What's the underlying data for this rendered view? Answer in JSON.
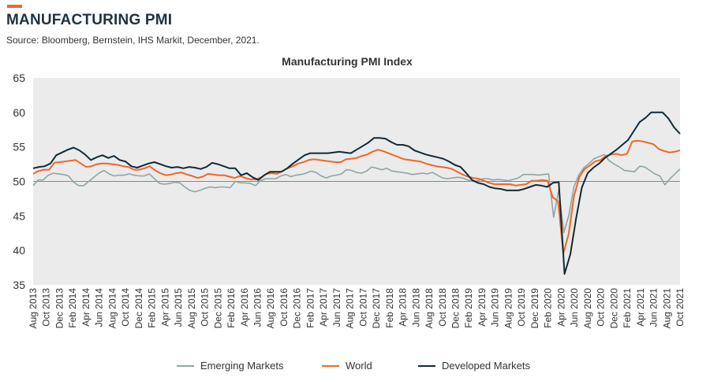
{
  "header": {
    "title": "MANUFACTURING PMI",
    "source": "Source: Bloomberg, Bernstein, IHS Markit, December, 2021."
  },
  "colors": {
    "accent": "#f26722",
    "emerging": "#8fa5a5",
    "world": "#f26722",
    "developed": "#0f2b3a",
    "plot_bg": "#ebebeb",
    "reference_line": "#888888"
  },
  "chart_data": {
    "type": "line",
    "title": "Manufacturing PMI Index",
    "xlabel": "",
    "ylabel": "",
    "ylim": [
      35,
      65
    ],
    "yticks": [
      35,
      40,
      45,
      50,
      55,
      60,
      65
    ],
    "reference_line": 50,
    "grid": false,
    "legend_position": "bottom",
    "x_start": "Aug 2013",
    "x_labels": [
      "Aug 2013",
      "Oct 2013",
      "Dec 2013",
      "Feb 2014",
      "Apr 2014",
      "Jun 2014",
      "Aug 2014",
      "Oct 2014",
      "Dec 2014",
      "Feb 2015",
      "Apr 2015",
      "Jun 2015",
      "Aug 2015",
      "Oct 2015",
      "Dec 2015",
      "Feb 2016",
      "Apr 2016",
      "Jun 2016",
      "Aug 2016",
      "Oct 2016",
      "Dec 2016",
      "Feb 2017",
      "Apr 2017",
      "Jun 2017",
      "Aug 2017",
      "Oct 2017",
      "Dec 2017",
      "Feb 2018",
      "Apr 2018",
      "Jun 2018",
      "Aug 2018",
      "Oct 2018",
      "Dec 2018",
      "Feb 2019",
      "Apr 2019",
      "Jun 2019",
      "Aug 2019",
      "Oct 2019",
      "Dec 2019",
      "Feb 2020",
      "Apr 2020",
      "Jun 2020",
      "Aug 2020",
      "Oct 2020",
      "Dec 2020",
      "Feb 2021",
      "Apr 2021",
      "Jun 2021",
      "Aug 2021",
      "Oct 2021"
    ],
    "series": [
      {
        "name": "Emerging Markets",
        "values": [
          49.4,
          50.2,
          50.2,
          50.9,
          51.2,
          51.1,
          51.0,
          50.8,
          49.9,
          49.4,
          49.4,
          50.0,
          50.6,
          51.2,
          51.6,
          51.1,
          50.8,
          50.9,
          50.9,
          51.1,
          50.9,
          50.8,
          50.8,
          51.1,
          50.4,
          49.7,
          49.6,
          49.7,
          49.9,
          49.8,
          49.2,
          48.7,
          48.5,
          48.7,
          49.0,
          49.2,
          49.1,
          49.2,
          49.2,
          49.1,
          50.0,
          49.8,
          49.8,
          49.7,
          49.4,
          50.1,
          50.4,
          50.4,
          50.4,
          50.8,
          51.0,
          50.7,
          50.9,
          51.0,
          51.2,
          51.5,
          51.3,
          50.8,
          50.5,
          50.8,
          50.9,
          51.1,
          51.7,
          51.6,
          51.3,
          51.2,
          51.5,
          52.1,
          51.9,
          51.7,
          51.9,
          51.5,
          51.4,
          51.3,
          51.2,
          51.0,
          51.1,
          51.2,
          51.1,
          51.3,
          50.9,
          50.5,
          50.4,
          50.5,
          50.6,
          50.5,
          50.2,
          50.0,
          50.1,
          50.4,
          50.4,
          50.2,
          50.3,
          50.2,
          50.1,
          50.3,
          50.5,
          51.0,
          51.0,
          51.0,
          50.9,
          51.0,
          51.1,
          44.8,
          48.8,
          42.6,
          45.1,
          49.2,
          51.0,
          52.0,
          52.6,
          53.3,
          53.6,
          53.9,
          53.0,
          52.5,
          52.1,
          51.6,
          51.5,
          51.4,
          52.2,
          52.1,
          51.6,
          51.1,
          50.8,
          49.5,
          50.4,
          51.1,
          51.8
        ]
      },
      {
        "name": "World",
        "values": [
          51.1,
          51.5,
          51.7,
          51.7,
          52.7,
          52.8,
          52.9,
          53.0,
          53.1,
          52.6,
          52.1,
          52.2,
          52.5,
          52.6,
          52.6,
          52.5,
          52.4,
          52.2,
          52.1,
          51.7,
          51.7,
          51.9,
          52.2,
          51.6,
          51.2,
          50.9,
          51.0,
          51.2,
          51.3,
          51.0,
          50.8,
          50.5,
          50.7,
          51.1,
          51.0,
          50.9,
          50.9,
          50.7,
          50.5,
          50.8,
          50.5,
          50.3,
          50.3,
          50.6,
          51.1,
          51.2,
          51.1,
          51.5,
          51.9,
          52.2,
          52.6,
          52.8,
          53.1,
          53.2,
          53.1,
          53.0,
          52.9,
          52.8,
          52.8,
          53.2,
          53.3,
          53.4,
          53.7,
          53.9,
          54.3,
          54.6,
          54.4,
          54.1,
          53.8,
          53.5,
          53.2,
          53.1,
          53.0,
          52.9,
          52.6,
          52.4,
          52.2,
          52.1,
          52.0,
          51.8,
          51.4,
          51.0,
          50.7,
          50.5,
          50.4,
          50.1,
          49.8,
          49.6,
          49.6,
          49.6,
          49.6,
          49.4,
          49.5,
          49.6,
          50.1,
          50.1,
          50.2,
          50.1,
          47.7,
          47.1,
          39.6,
          42.4,
          47.9,
          50.6,
          51.8,
          52.3,
          52.9,
          53.1,
          53.7,
          53.9,
          54.0,
          53.8,
          54.0,
          55.8,
          55.9,
          55.8,
          55.6,
          55.4,
          54.7,
          54.4,
          54.2,
          54.3,
          54.5
        ]
      },
      {
        "name": "Developed Markets",
        "values": [
          51.9,
          52.1,
          52.2,
          52.6,
          53.8,
          54.2,
          54.6,
          54.9,
          54.5,
          53.9,
          53.1,
          53.5,
          53.8,
          53.4,
          53.7,
          53.1,
          52.9,
          52.2,
          52.0,
          52.3,
          52.6,
          52.8,
          52.5,
          52.2,
          52.0,
          52.1,
          51.9,
          52.1,
          52.0,
          51.8,
          52.1,
          52.7,
          52.5,
          52.2,
          51.9,
          51.9,
          50.9,
          51.2,
          50.6,
          50.2,
          50.9,
          51.4,
          51.4,
          51.4,
          51.9,
          52.6,
          53.2,
          53.8,
          54.1,
          54.1,
          54.1,
          54.1,
          54.2,
          54.3,
          54.2,
          54.1,
          54.6,
          55.1,
          55.6,
          56.3,
          56.3,
          56.2,
          55.7,
          55.3,
          55.3,
          55.1,
          54.5,
          54.2,
          53.9,
          53.7,
          53.5,
          53.3,
          52.9,
          52.4,
          52.1,
          51.2,
          50.2,
          49.8,
          49.6,
          49.2,
          49.0,
          48.9,
          48.7,
          48.7,
          48.7,
          48.9,
          49.2,
          49.5,
          49.4,
          49.2,
          49.8,
          49.9,
          36.6,
          39.4,
          44.6,
          49.1,
          51.2,
          52.0,
          52.6,
          53.4,
          54.0,
          54.6,
          55.3,
          56.0,
          57.3,
          58.6,
          59.2,
          60.0,
          60.0,
          60.0,
          59.1,
          57.8,
          56.9
        ]
      }
    ]
  }
}
